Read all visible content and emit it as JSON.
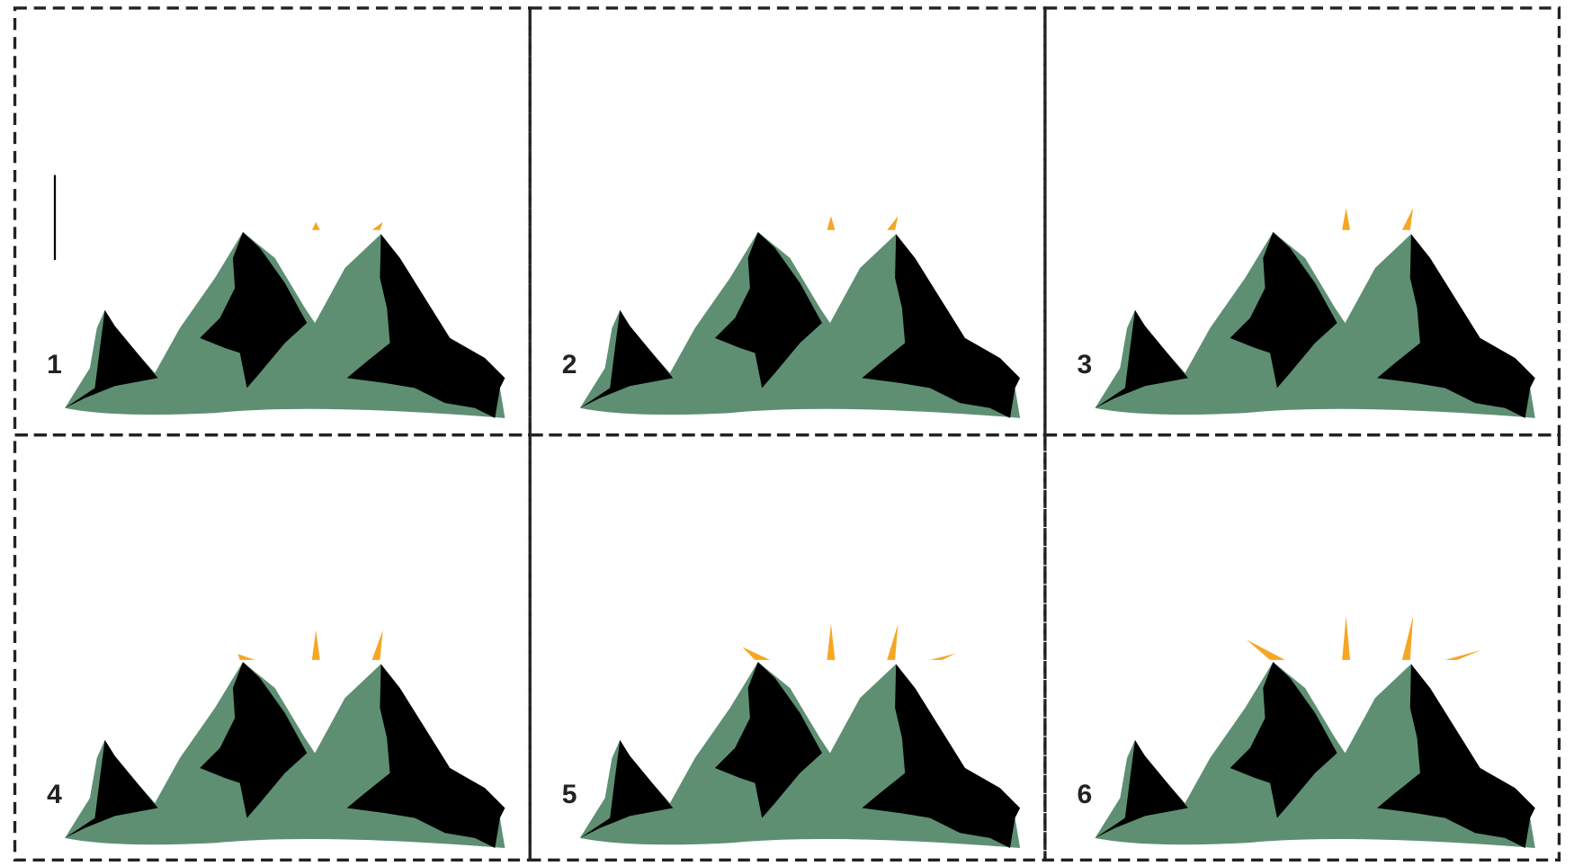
{
  "frames": [
    {
      "label": "1"
    },
    {
      "label": "2"
    },
    {
      "label": "3"
    },
    {
      "label": "4"
    },
    {
      "label": "5"
    },
    {
      "label": "6"
    }
  ]
}
